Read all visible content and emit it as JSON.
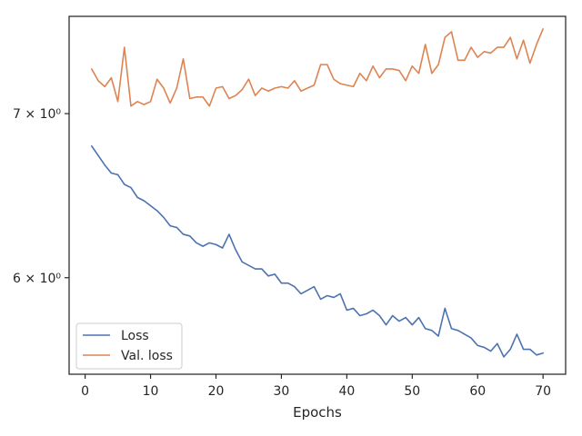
{
  "chart_data": {
    "type": "line",
    "title": "",
    "xlabel": "Epochs",
    "ylabel": "",
    "yscale": "log",
    "xlim": [
      -2.45,
      73.45
    ],
    "ylim": [
      5.48,
      7.67
    ],
    "xticks": [
      0,
      10,
      20,
      30,
      40,
      50,
      60,
      70
    ],
    "xtick_labels": [
      "0",
      "10",
      "20",
      "30",
      "40",
      "50",
      "60",
      "70"
    ],
    "yticks": [
      6,
      7
    ],
    "ytick_labels": [
      "6 × 10⁰",
      "7 × 10⁰"
    ],
    "grid": false,
    "legend_position": "lower-left",
    "x": [
      1,
      2,
      3,
      4,
      5,
      6,
      7,
      8,
      9,
      10,
      11,
      12,
      13,
      14,
      15,
      16,
      17,
      18,
      19,
      20,
      21,
      22,
      23,
      24,
      25,
      26,
      27,
      28,
      29,
      30,
      31,
      32,
      33,
      34,
      35,
      36,
      37,
      38,
      39,
      40,
      41,
      42,
      43,
      44,
      45,
      46,
      47,
      48,
      49,
      50,
      51,
      52,
      53,
      54,
      55,
      56,
      57,
      58,
      59,
      60,
      61,
      62,
      63,
      64,
      65,
      66,
      67,
      68,
      69,
      70
    ],
    "series": [
      {
        "name": "Loss",
        "color": "#4c72b0",
        "values": [
          6.79,
          6.73,
          6.67,
          6.62,
          6.61,
          6.55,
          6.53,
          6.47,
          6.45,
          6.42,
          6.39,
          6.35,
          6.3,
          6.29,
          6.25,
          6.24,
          6.2,
          6.18,
          6.2,
          6.19,
          6.17,
          6.25,
          6.16,
          6.09,
          6.07,
          6.05,
          6.05,
          6.01,
          6.02,
          5.97,
          5.97,
          5.95,
          5.91,
          5.93,
          5.95,
          5.88,
          5.9,
          5.89,
          5.91,
          5.82,
          5.83,
          5.79,
          5.8,
          5.82,
          5.79,
          5.74,
          5.79,
          5.76,
          5.78,
          5.74,
          5.78,
          5.72,
          5.71,
          5.68,
          5.83,
          5.72,
          5.71,
          5.69,
          5.67,
          5.63,
          5.62,
          5.6,
          5.64,
          5.57,
          5.61,
          5.69,
          5.61,
          5.61,
          5.58,
          5.59
        ]
      },
      {
        "name": "Val. loss",
        "color": "#dd8452",
        "values": [
          7.3,
          7.22,
          7.18,
          7.24,
          7.08,
          7.45,
          7.05,
          7.08,
          7.06,
          7.08,
          7.23,
          7.17,
          7.07,
          7.17,
          7.37,
          7.1,
          7.11,
          7.11,
          7.05,
          7.17,
          7.18,
          7.1,
          7.12,
          7.16,
          7.23,
          7.12,
          7.17,
          7.15,
          7.17,
          7.18,
          7.17,
          7.22,
          7.15,
          7.17,
          7.19,
          7.33,
          7.33,
          7.23,
          7.2,
          7.19,
          7.18,
          7.27,
          7.22,
          7.32,
          7.24,
          7.3,
          7.3,
          7.29,
          7.22,
          7.32,
          7.27,
          7.47,
          7.27,
          7.33,
          7.52,
          7.56,
          7.36,
          7.36,
          7.45,
          7.38,
          7.42,
          7.41,
          7.45,
          7.45,
          7.52,
          7.37,
          7.5,
          7.34,
          7.47,
          7.58
        ]
      }
    ]
  }
}
